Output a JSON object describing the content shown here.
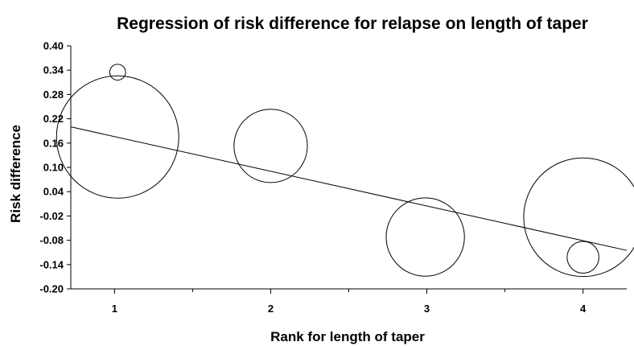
{
  "chart_data": {
    "type": "scatter",
    "title": "Regression of risk difference for relapse on length of taper",
    "xlabel": "Rank for length of taper",
    "ylabel": "Risk difference",
    "xlim": [
      0.72,
      4.28
    ],
    "ylim": [
      -0.2,
      0.4
    ],
    "x_ticks": [
      1,
      2,
      3,
      4
    ],
    "y_ticks": [
      "0.40",
      "0.34",
      "0.28",
      "0.22",
      "0.16",
      "0.10",
      "0.04",
      "-0.02",
      "-0.08",
      "-0.14",
      "-0.20"
    ],
    "grid": false,
    "points": [
      {
        "x": 1.02,
        "y": 0.335,
        "size": 0.13
      },
      {
        "x": 1.02,
        "y": 0.175,
        "size": 1.0
      },
      {
        "x": 2.0,
        "y": 0.153,
        "size": 0.6
      },
      {
        "x": 2.99,
        "y": -0.072,
        "size": 0.64
      },
      {
        "x": 4.0,
        "y": -0.023,
        "size": 0.97
      },
      {
        "x": 4.0,
        "y": -0.122,
        "size": 0.26
      }
    ],
    "regression_line": {
      "x": [
        0.72,
        4.28
      ],
      "y": [
        0.2,
        -0.105
      ]
    }
  }
}
